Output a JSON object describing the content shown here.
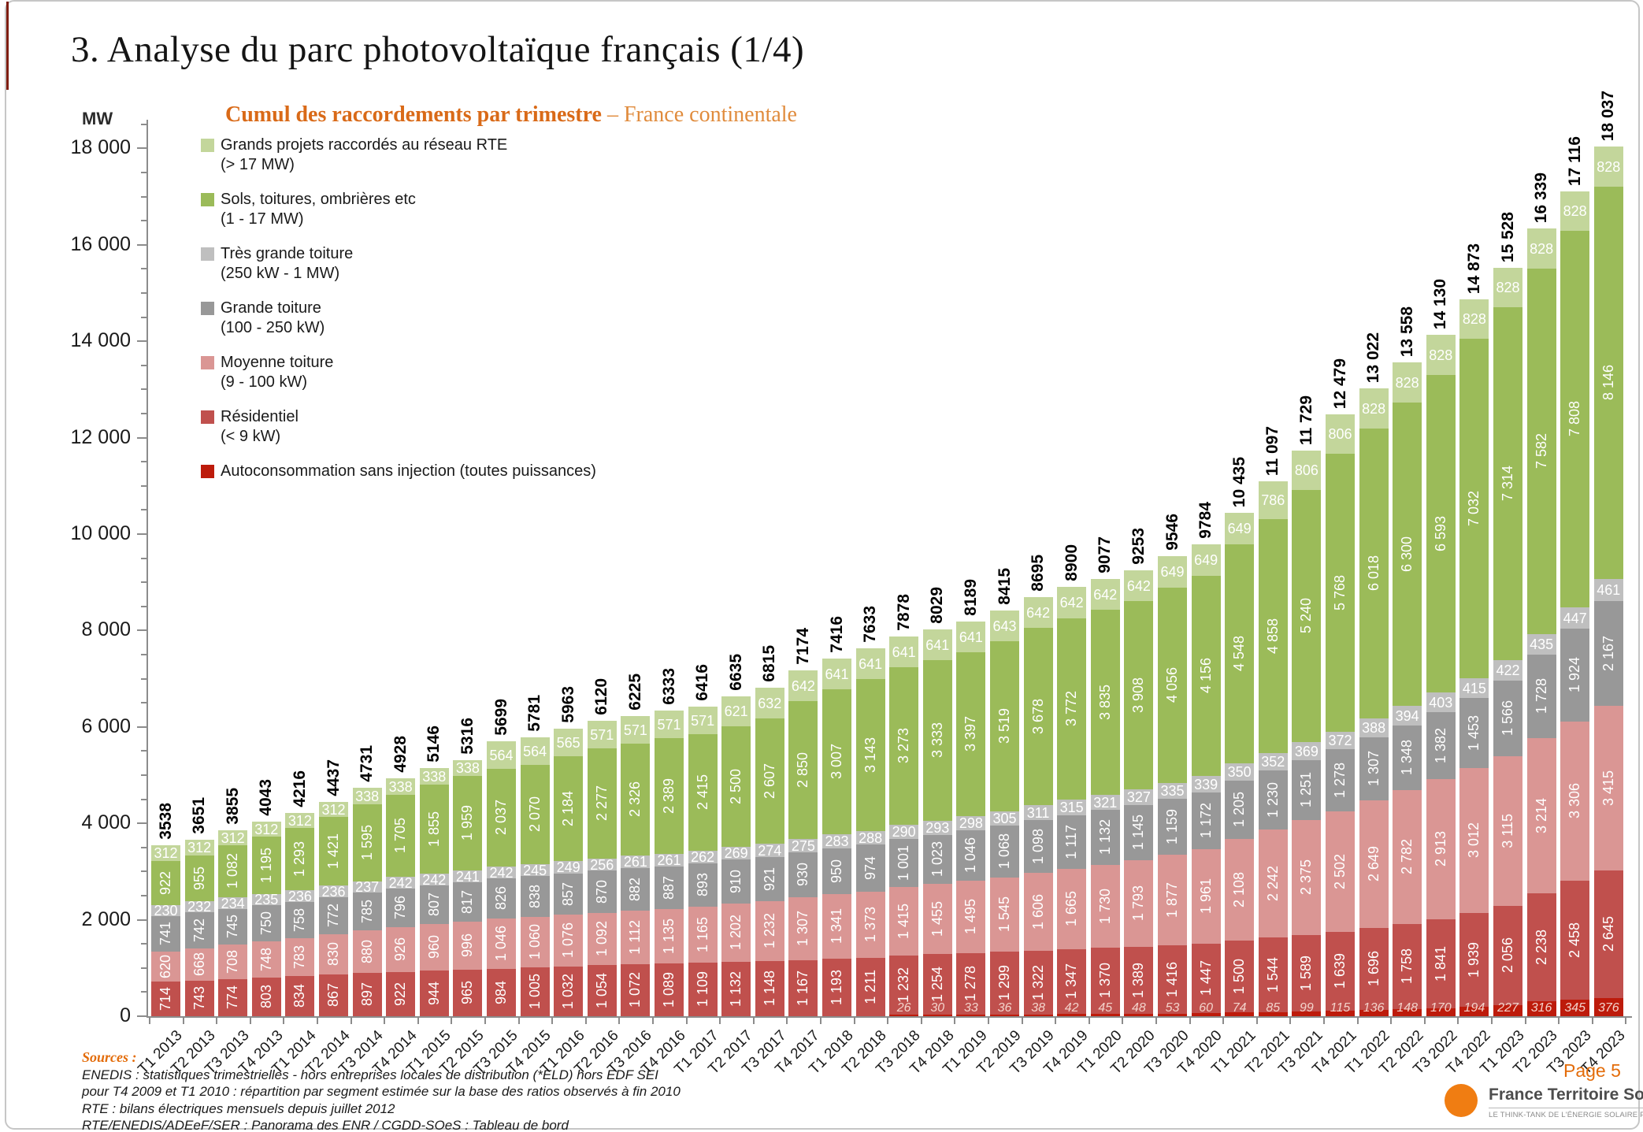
{
  "page": {
    "title": "3. Analyse du parc photovoltaïque français (1/4)",
    "page_label": "Page 5"
  },
  "header": {
    "unit_label": "MW",
    "subtitle_bold": "Cumul des raccordements par trimestre",
    "subtitle_rest": " – France continentale"
  },
  "legend": {
    "items": [
      {
        "label": "Grands projets raccordés au réseau RTE",
        "sublabel": "(> 17 MW)",
        "color": "#c3d69b"
      },
      {
        "label": "Sols, toitures, ombrières etc",
        "sublabel": "(1 - 17 MW)",
        "color": "#9bbb59"
      },
      {
        "label": "Très grande toiture",
        "sublabel": "(250 kW - 1 MW)",
        "color": "#bfbfbf"
      },
      {
        "label": "Grande toiture",
        "sublabel": "(100 - 250 kW)",
        "color": "#989898"
      },
      {
        "label": "Moyenne toiture",
        "sublabel": "(9 - 100 kW)",
        "color": "#da9694"
      },
      {
        "label": "Résidentiel",
        "sublabel": "(< 9 kW)",
        "color": "#c0504d"
      },
      {
        "label": "Autoconsommation sans injection (toutes puissances)",
        "sublabel": "",
        "color": "#bd1b0b"
      }
    ]
  },
  "chart_data": {
    "type": "bar",
    "stacked": true,
    "title": "Cumul des raccordements par trimestre – France continentale",
    "ylabel": "MW",
    "ylim": [
      0,
      18000
    ],
    "ytick_major": 2000,
    "ytick_minor": 500,
    "grid": false,
    "legend_position": "upper-left",
    "categories": [
      "T1 2013",
      "T2 2013",
      "T3 2013",
      "T4 2013",
      "T1 2014",
      "T2 2014",
      "T3 2014",
      "T4 2014",
      "T1 2015",
      "T2 2015",
      "T3 2015",
      "T4 2015",
      "T1 2016",
      "T2 2016",
      "T3 2016",
      "T4 2016",
      "T1 2017",
      "T2 2017",
      "T3 2017",
      "T4 2017",
      "T1 2018",
      "T2 2018",
      "T3 2018",
      "T4 2018",
      "T1 2019",
      "T2 2019",
      "T3 2019",
      "T4 2019",
      "T1 2020",
      "T2 2020",
      "T3 2020",
      "T4 2020",
      "T1 2021",
      "T2 2021",
      "T3 2021",
      "T4 2021",
      "T1 2022",
      "T2 2022",
      "T3 2022",
      "T4 2022",
      "T1 2023",
      "T2 2023",
      "T3 2023",
      "T4 2023"
    ],
    "totals": [
      3538,
      3651,
      3855,
      4043,
      4216,
      4437,
      4731,
      4928,
      5146,
      5316,
      5699,
      5781,
      5963,
      6120,
      6225,
      6333,
      6416,
      6635,
      6815,
      7174,
      7416,
      7633,
      7878,
      8029,
      8189,
      8415,
      8695,
      8900,
      9077,
      9253,
      9546,
      9784,
      10435,
      11097,
      11729,
      12479,
      13022,
      13558,
      14130,
      14873,
      15528,
      16339,
      17116,
      18037
    ],
    "series": [
      {
        "key": "autoconsommation",
        "name": "Autoconsommation sans injection (toutes puissances)",
        "color": "#bd1b0b",
        "label_style": "autoconso",
        "values": [
          null,
          null,
          null,
          null,
          null,
          null,
          null,
          null,
          null,
          null,
          null,
          null,
          null,
          null,
          null,
          null,
          null,
          null,
          null,
          null,
          null,
          null,
          26,
          30,
          33,
          36,
          38,
          42,
          45,
          48,
          53,
          60,
          74,
          85,
          99,
          115,
          136,
          148,
          170,
          194,
          227,
          316,
          345,
          376
        ]
      },
      {
        "key": "residentiel",
        "name": "Résidentiel (< 9 kW)",
        "color": "#c0504d",
        "label_style": "vertical",
        "values": [
          714,
          743,
          774,
          803,
          834,
          867,
          897,
          922,
          944,
          965,
          984,
          1005,
          1032,
          1054,
          1072,
          1089,
          1109,
          1132,
          1148,
          1167,
          1193,
          1211,
          1232,
          1254,
          1278,
          1299,
          1322,
          1347,
          1370,
          1389,
          1416,
          1447,
          1500,
          1544,
          1589,
          1639,
          1696,
          1758,
          1841,
          1939,
          2056,
          2238,
          2458,
          2645
        ]
      },
      {
        "key": "moyenne_toiture",
        "name": "Moyenne toiture (9 - 100 kW)",
        "color": "#da9694",
        "label_style": "vertical",
        "values": [
          620,
          668,
          708,
          748,
          783,
          830,
          880,
          926,
          960,
          996,
          1046,
          1060,
          1076,
          1092,
          1112,
          1135,
          1165,
          1202,
          1232,
          1307,
          1341,
          1373,
          1415,
          1455,
          1495,
          1545,
          1606,
          1665,
          1730,
          1793,
          1877,
          1961,
          2108,
          2242,
          2375,
          2502,
          2649,
          2782,
          2913,
          3012,
          3115,
          3214,
          3306,
          3415
        ]
      },
      {
        "key": "grande_toiture",
        "name": "Grande toiture (100 - 250 kW)",
        "color": "#989898",
        "label_style": "vertical",
        "values": [
          741,
          742,
          745,
          750,
          758,
          772,
          785,
          796,
          807,
          817,
          826,
          838,
          857,
          870,
          882,
          887,
          893,
          910,
          921,
          930,
          950,
          974,
          1001,
          1023,
          1046,
          1068,
          1098,
          1117,
          1132,
          1145,
          1159,
          1172,
          1205,
          1230,
          1251,
          1278,
          1307,
          1348,
          1382,
          1453,
          1566,
          1728,
          1924,
          2167
        ]
      },
      {
        "key": "tres_grande_toiture",
        "name": "Très grande toiture (250 kW - 1 MW)",
        "color": "#bfbfbf",
        "label_style": "horizontal",
        "values": [
          230,
          232,
          234,
          235,
          236,
          236,
          237,
          242,
          242,
          241,
          242,
          245,
          249,
          256,
          261,
          261,
          262,
          269,
          274,
          275,
          283,
          288,
          290,
          293,
          298,
          305,
          311,
          315,
          321,
          327,
          335,
          339,
          350,
          352,
          369,
          372,
          388,
          394,
          403,
          415,
          422,
          435,
          447,
          461
        ]
      },
      {
        "key": "sols_toitures",
        "name": "Sols, toitures, ombrières etc (1 - 17 MW)",
        "color": "#9bbb59",
        "label_style": "vertical",
        "values": [
          922,
          955,
          1082,
          1195,
          1293,
          1421,
          1595,
          1705,
          1855,
          1959,
          2037,
          2070,
          2184,
          2277,
          2326,
          2389,
          2415,
          2500,
          2607,
          2850,
          3007,
          3143,
          3273,
          3333,
          3397,
          3519,
          3678,
          3772,
          3835,
          3908,
          4056,
          4156,
          4548,
          4858,
          5240,
          5768,
          6018,
          6300,
          6593,
          7032,
          7314,
          7582,
          7808,
          8146
        ]
      },
      {
        "key": "grands_projets_rte",
        "name": "Grands projets raccordés au réseau RTE (> 17 MW)",
        "color": "#c3d69b",
        "label_style": "horizontal",
        "values": [
          312,
          312,
          312,
          312,
          312,
          312,
          338,
          338,
          338,
          338,
          564,
          564,
          565,
          571,
          571,
          571,
          571,
          621,
          632,
          642,
          641,
          641,
          641,
          641,
          641,
          643,
          642,
          642,
          642,
          642,
          649,
          649,
          649,
          786,
          806,
          806,
          828,
          828,
          828,
          828,
          828,
          828,
          828,
          828
        ]
      }
    ]
  },
  "footer": {
    "sources_title": "Sources :",
    "lines": [
      "ENEDIS : statistiques trimestrielles - hors entreprises locales de distribution (*ELD) hors EDF SEI",
      "pour T4 2009 et T1 2010 : répartition par segment estimée sur la base des ratios observés à fin 2010",
      "RTE : bilans électriques mensuels depuis juillet 2012",
      "RTE/ENEDIS/ADEeF/SER : Panorama des ENR /  CGDD-SOeS : Tableau de bord"
    ]
  },
  "branding": {
    "name": "France Territoire Solaire",
    "tagline": "LE THINK-TANK DE L'ÉNERGIE SOLAIRE PHOTOVOLTAÏQUE",
    "accent_color": "#f07d12"
  }
}
